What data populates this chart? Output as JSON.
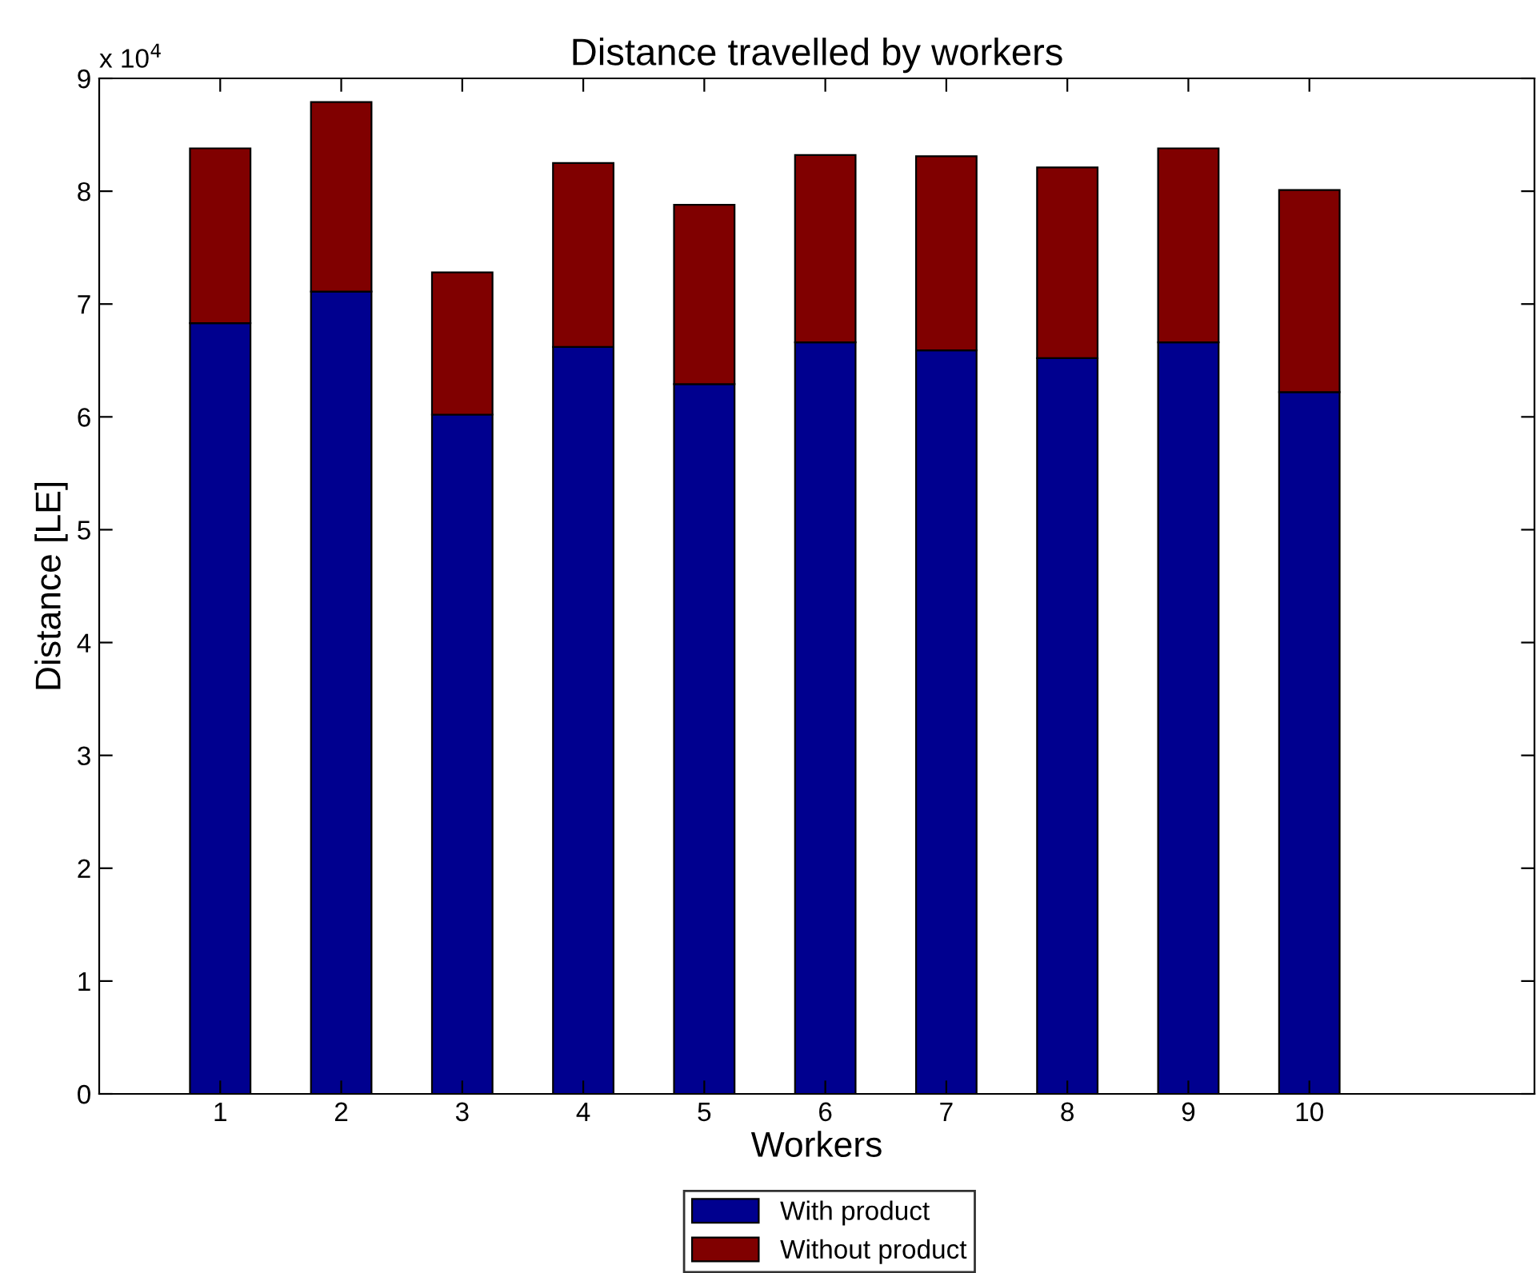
{
  "chart_data": {
    "type": "bar",
    "stacked": true,
    "title": "Distance travelled by workers",
    "xlabel": "Workers",
    "ylabel": "Distance [LE]",
    "x": [
      1,
      2,
      3,
      4,
      5,
      6,
      7,
      8,
      9,
      10
    ],
    "series": [
      {
        "name": "With product",
        "color": "#00008f",
        "values": [
          6.83,
          7.11,
          6.02,
          6.62,
          6.29,
          6.66,
          6.59,
          6.52,
          6.66,
          6.22
        ]
      },
      {
        "name": "Without product",
        "color": "#800000",
        "values": [
          1.55,
          1.68,
          1.26,
          1.63,
          1.59,
          1.66,
          1.72,
          1.69,
          1.72,
          1.79
        ]
      }
    ],
    "xlim": [
      0,
      11.86
    ],
    "xticks": [
      1,
      2,
      3,
      4,
      5,
      6,
      7,
      8,
      9,
      10
    ],
    "ylim": [
      0,
      9
    ],
    "yticks": [
      0,
      1,
      2,
      3,
      4,
      5,
      6,
      7,
      8,
      9
    ],
    "annotations": [
      "x 10$^{4}$"
    ],
    "grid": false,
    "legend": "bottom"
  }
}
